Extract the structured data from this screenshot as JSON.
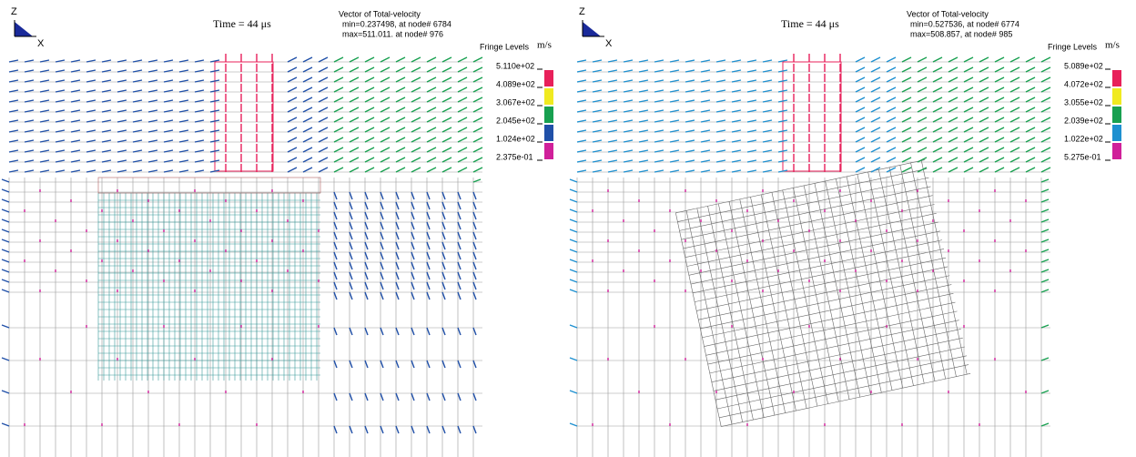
{
  "panels": [
    {
      "axis_z": "Z",
      "axis_x": "X",
      "time": "Time = 44 μs",
      "vector_title": "Vector of Total-velocity",
      "min": "min=0.237498, at node# 6784",
      "max": "max=511.011. at node# 976",
      "fringe_title": "Fringe Levels",
      "unit": "m/s",
      "levels": [
        "5.110e+02",
        "4.089e+02",
        "3.067e+02",
        "2.045e+02",
        "1.024e+02",
        "2.375e-01"
      ]
    },
    {
      "axis_z": "Z",
      "axis_x": "X",
      "time": "Time = 44 μs",
      "vector_title": "Vector of Total-velocity",
      "min": "min=0.527536, at node# 6774",
      "max": "max=508.857, at node# 985",
      "fringe_title": "Fringe Levels",
      "unit": "m/s",
      "levels": [
        "5.089e+02",
        "4.072e+02",
        "3.055e+02",
        "2.039e+02",
        "1.022e+02",
        "5.275e-01"
      ]
    }
  ]
}
